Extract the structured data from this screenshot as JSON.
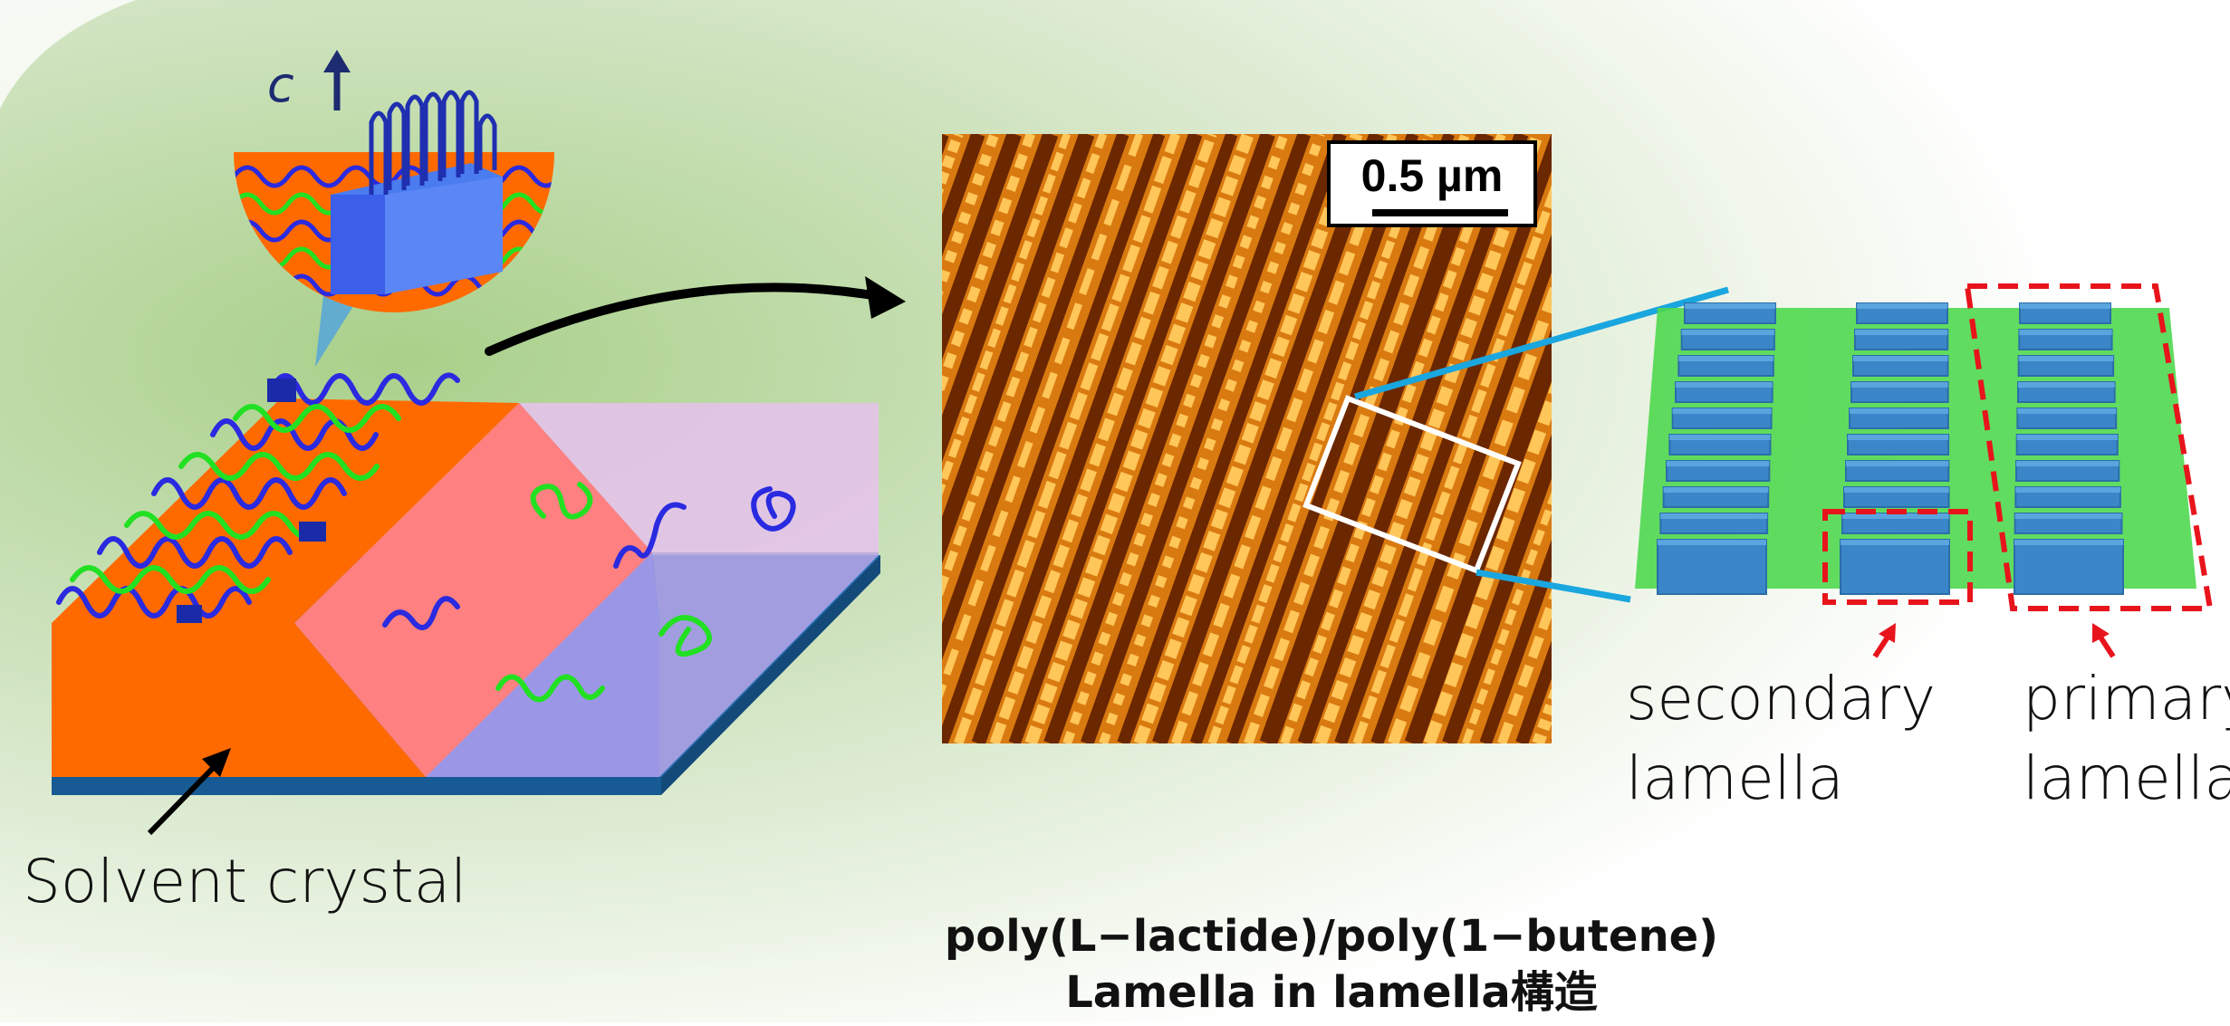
{
  "labels": {
    "axis_c": "c",
    "solvent_crystal": "Solvent crystal",
    "scale_bar": "0.5 µm",
    "secondary_lamella_line1": "secondary",
    "secondary_lamella_line2": "lamella",
    "primary_lamella_line1": "primary",
    "primary_lamella_line2": "lamella",
    "caption_line1": "poly(L−lactide)/poly(1−butene)",
    "caption_line2": "Lamella in lamella構造"
  },
  "colors": {
    "orange_crystal": "#ff6a00",
    "pink_face": "#ff8080",
    "lavender_face": "#9b97e6",
    "blue_base": "#1f6fb5",
    "chain_blue": "#2a2ae0",
    "chain_green": "#22e022",
    "callout_cyan": "#1aa6df",
    "dashed_red": "#e8141c",
    "lamella_green": "#4fd84f",
    "lamella_block": "#3a86c8"
  },
  "icons": [
    "arrow-up-icon",
    "curved-arrow-icon",
    "pointer-arrow-icon"
  ]
}
